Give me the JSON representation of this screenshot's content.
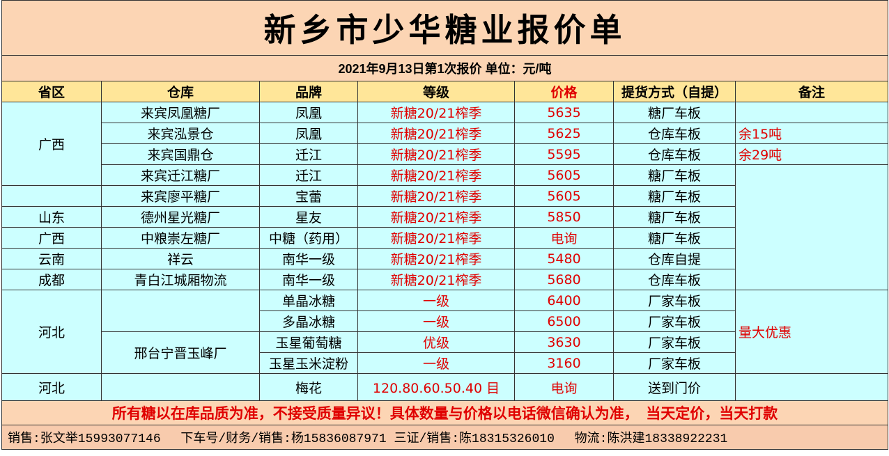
{
  "title": "新乡市少华糖业报价单",
  "subtitle": "2021年9月13日第1次报价 单位：元/吨",
  "headers": [
    "省区",
    "仓库",
    "品牌",
    "等级",
    "价格",
    "提货方式（自提）",
    "备注"
  ],
  "rows": [
    {
      "brand": "凤凰",
      "warehouse": "来宾凤凰糖厂",
      "grade": "新糖20/21榨季",
      "price": "5635",
      "delivery": "糖厂车板"
    },
    {
      "brand": "凤凰",
      "warehouse": "来宾泓景仓",
      "grade": "新糖20/21榨季",
      "price": "5625",
      "delivery": "仓库车板",
      "note": "余15吨"
    },
    {
      "brand": "迁江",
      "warehouse": "来宾国鼎仓",
      "grade": "新糖20/21榨季",
      "price": "5595",
      "delivery": "仓库车板",
      "note": "余29吨"
    },
    {
      "brand": "迁江",
      "warehouse": "来宾迁江糖厂",
      "grade": "新糖20/21榨季",
      "price": "5605",
      "delivery": "糖厂车板"
    },
    {
      "brand": "宝蕾",
      "warehouse": "来宾廖平糖厂",
      "grade": "新糖20/21榨季",
      "price": "5605",
      "delivery": "糖厂车板"
    },
    {
      "province": "山东",
      "brand": "星友",
      "warehouse": "德州星光糖厂",
      "grade": "新糖20/21榨季",
      "price": "5850",
      "delivery": "糖厂车板"
    },
    {
      "province": "广西",
      "brand": "中糖（药用）",
      "warehouse": "中粮崇左糖厂",
      "grade": "新糖20/21榨季",
      "price": "电询",
      "delivery": "糖厂车板"
    },
    {
      "province": "云南",
      "brand": "南华一级",
      "warehouse": "祥云",
      "grade": "新糖20/21榨季",
      "price": "5480",
      "delivery": "仓库自提"
    },
    {
      "province": "成都",
      "brand": "南华一级",
      "warehouse": "青白江城厢物流",
      "grade": "新糖20/21榨季",
      "price": "5680",
      "delivery": "仓库车板"
    },
    {
      "brand": "单晶冰糖",
      "grade": "一级",
      "price": "6400",
      "delivery": "厂家车板"
    },
    {
      "brand": "多晶冰糖",
      "grade": "一级",
      "price": "6500",
      "delivery": "厂家车板"
    },
    {
      "brand": "玉星葡萄糖",
      "warehouse": "邢台宁晋玉峰厂",
      "grade": "优级",
      "price": "3630",
      "delivery": "厂家车板"
    },
    {
      "brand": "玉星玉米淀粉",
      "grade": "一级",
      "price": "3160",
      "delivery": "厂家车板"
    },
    {
      "province": "河北",
      "brand": "梅花",
      "grade": "120.80.60.50.40 目",
      "price": "电询",
      "delivery": "送到门价"
    }
  ],
  "merged": {
    "guangxi": "广西",
    "hebei": "河北",
    "hebei_note": "量大优惠"
  },
  "notice": "所有糖以在库品质为准，不接受质量异议！具体数量与价格以电话微信确认为准，　当天定价，当天打款",
  "footer": "销售:张文举15993077146　 下车号/财务/销售:杨15836087971 三证/销售:陈18315326010　 物流:陈洪建18338922231",
  "colors": {
    "title_bg": "#fcd5b4",
    "header_bg": "#ffe699",
    "body_bg": "#ccffff",
    "accent_red": "#e00000"
  }
}
